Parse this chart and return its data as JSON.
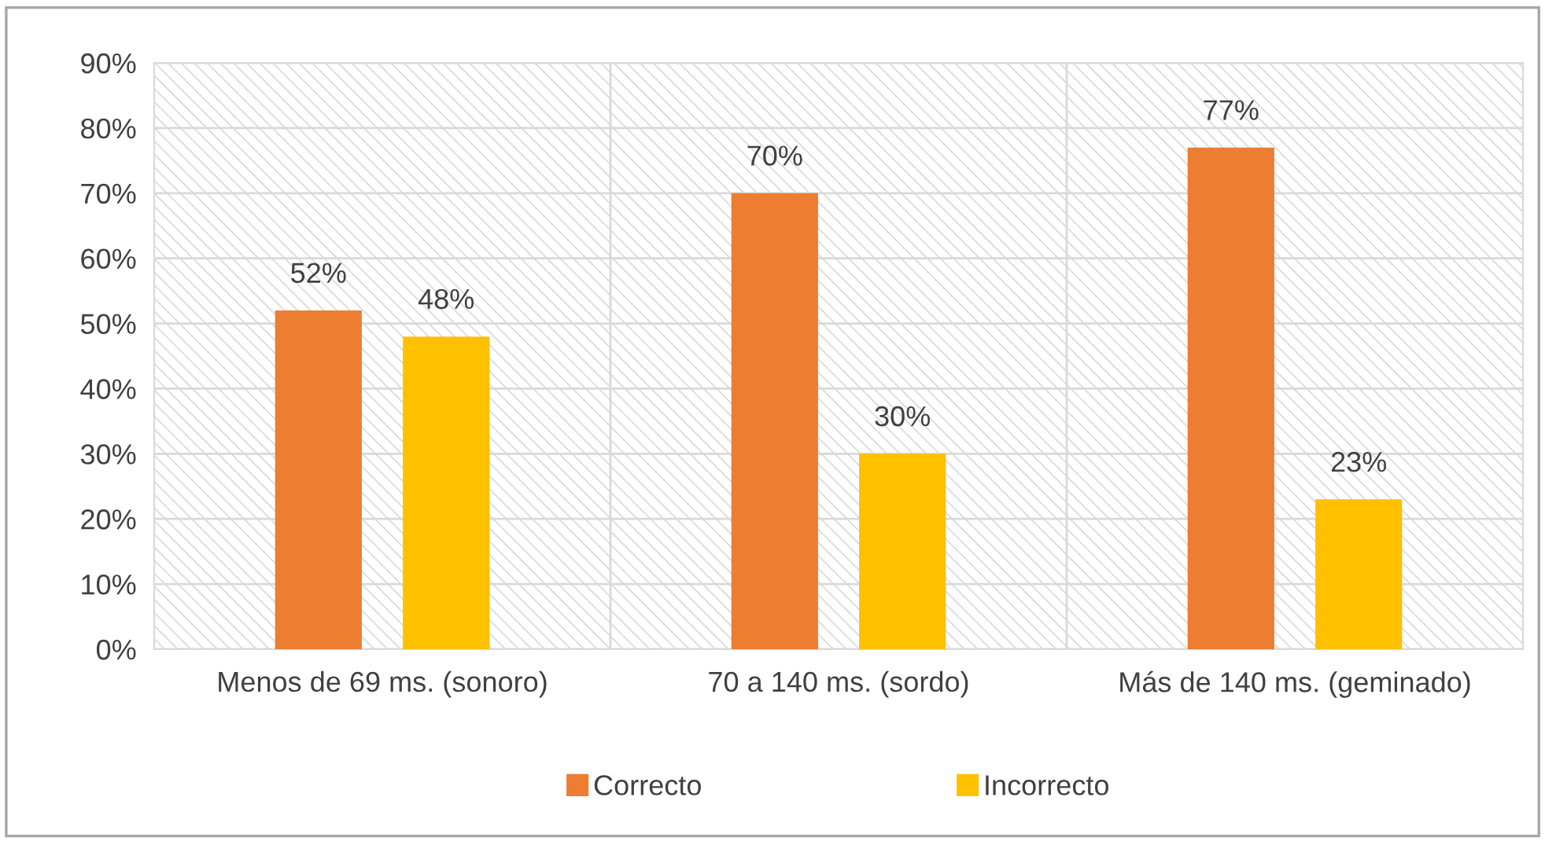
{
  "chart_data": {
    "type": "bar",
    "categories": [
      "Menos de 69 ms. (sonoro)",
      "70 a 140 ms. (sordo)",
      "Más de 140 ms. (geminado)"
    ],
    "series": [
      {
        "name": "Correcto",
        "color": "#ed7d31",
        "values": [
          52,
          70,
          77
        ],
        "value_labels": [
          "52%",
          "70%",
          "77%"
        ]
      },
      {
        "name": "Incorrecto",
        "color": "#ffc000",
        "values": [
          48,
          30,
          23
        ],
        "value_labels": [
          "48%",
          "30%",
          "23%"
        ]
      }
    ],
    "ylim": [
      0,
      90
    ],
    "yticks": [
      {
        "value": 0,
        "label": "0%"
      },
      {
        "value": 10,
        "label": "10%"
      },
      {
        "value": 20,
        "label": "20%"
      },
      {
        "value": 30,
        "label": "30%"
      },
      {
        "value": 40,
        "label": "40%"
      },
      {
        "value": 50,
        "label": "50%"
      },
      {
        "value": 60,
        "label": "60%"
      },
      {
        "value": 70,
        "label": "70%"
      },
      {
        "value": 80,
        "label": "80%"
      },
      {
        "value": 90,
        "label": "90%"
      }
    ],
    "grid": true,
    "legend": "bottom"
  }
}
